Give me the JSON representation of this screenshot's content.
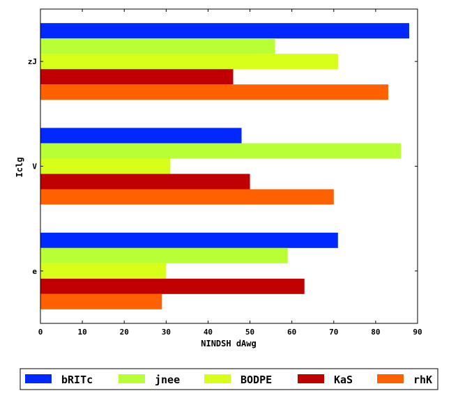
{
  "chart_data": {
    "type": "bar",
    "orientation": "horizontal",
    "categories": [
      "e",
      "V",
      "zJ"
    ],
    "series": [
      {
        "name": "bRITc",
        "color": "#0028ff",
        "values": [
          71,
          48,
          88
        ]
      },
      {
        "name": "jnee",
        "color": "#b8ff36",
        "values": [
          59,
          86,
          56
        ]
      },
      {
        "name": "BODPE",
        "color": "#d8ff1a",
        "values": [
          30,
          31,
          71
        ]
      },
      {
        "name": "KaS",
        "color": "#c00000",
        "values": [
          63,
          50,
          46
        ]
      },
      {
        "name": "rhK",
        "color": "#ff6000",
        "values": [
          29,
          70,
          83
        ]
      }
    ],
    "xlabel": "NINDSH dAwg",
    "ylabel": "Iclg",
    "xlim": [
      0,
      90
    ],
    "xticks": [
      0,
      10,
      20,
      30,
      40,
      50,
      60,
      70,
      80,
      90
    ],
    "grid": false,
    "legend_position": "bottom"
  }
}
